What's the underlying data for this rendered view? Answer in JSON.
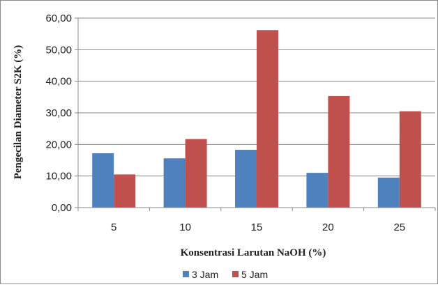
{
  "chart_data": {
    "type": "bar",
    "title": "",
    "xlabel": "Konsentrasi Larutan NaOH (%)",
    "ylabel": "Pengecilan Diameter S2K (%)",
    "categories": [
      "5",
      "10",
      "15",
      "20",
      "25"
    ],
    "series": [
      {
        "name": "3 Jam",
        "color": "#4f81bd",
        "values": [
          17.2,
          15.6,
          18.3,
          11.0,
          9.5
        ]
      },
      {
        "name": "5 Jam",
        "color": "#c0504d",
        "values": [
          10.5,
          21.7,
          56.2,
          35.3,
          30.5
        ]
      }
    ],
    "ylim": [
      0,
      60
    ],
    "yticks": [
      "0,00",
      "10,00",
      "20,00",
      "30,00",
      "40,00",
      "50,00",
      "60,00"
    ],
    "grid": true,
    "legend_position": "bottom"
  }
}
